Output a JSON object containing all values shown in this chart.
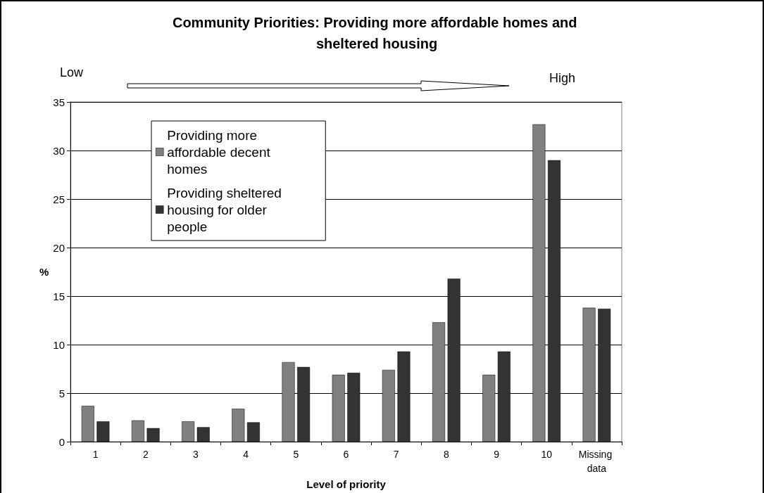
{
  "chart_data": {
    "type": "bar",
    "title": "Community Priorities: Providing more affordable homes and sheltered housing",
    "xlabel": "Level of priority",
    "ylabel": "%",
    "annotations": [
      "Low",
      "High"
    ],
    "categories": [
      "1",
      "2",
      "3",
      "4",
      "5",
      "6",
      "7",
      "8",
      "9",
      "10",
      "Missing data"
    ],
    "series": [
      {
        "name": "Providing more affordable decent homes",
        "color": "#808080",
        "values": [
          3.7,
          2.2,
          2.1,
          3.4,
          8.2,
          6.9,
          7.4,
          12.3,
          6.9,
          32.7,
          13.8
        ]
      },
      {
        "name": "Providing sheltered housing for older people",
        "color": "#333333",
        "values": [
          2.1,
          1.4,
          1.5,
          2.0,
          7.7,
          7.1,
          9.3,
          16.8,
          9.3,
          29.0,
          13.7
        ]
      }
    ],
    "ylim": [
      0,
      35
    ],
    "yticks": [
      0,
      5,
      10,
      15,
      20,
      25,
      30,
      35
    ],
    "grid": "y",
    "legend": "top"
  }
}
